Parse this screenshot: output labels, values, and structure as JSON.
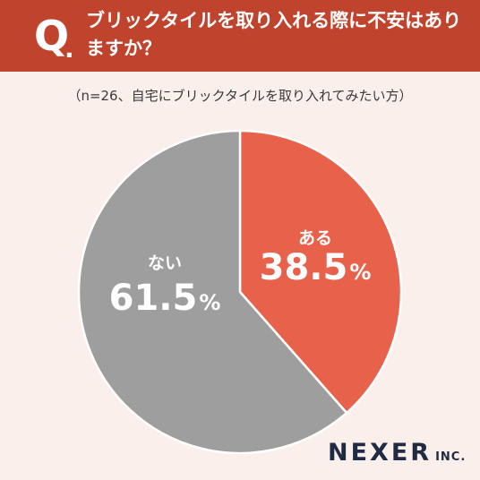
{
  "header": {
    "q_mark": "Q",
    "q_dot": ".",
    "question": "ブリックタイルを取り入れる際に不安はありますか？"
  },
  "subtitle": "（n=26、自宅にブリックタイルを取り入れてみたい方）",
  "chart_data": {
    "type": "pie",
    "title": "ブリックタイルを取り入れる際に不安はありますか？",
    "subtitle": "（n=26、自宅にブリックタイルを取り入れてみたい方）",
    "slices": [
      {
        "label": "ある",
        "value": 38.5,
        "value_text": "38.5",
        "unit": "%",
        "color": "#e8614a"
      },
      {
        "label": "ない",
        "value": 61.5,
        "value_text": "61.5",
        "unit": "%",
        "color": "#9e9e9e"
      }
    ],
    "start": "12 o'clock",
    "direction": "clockwise",
    "separator_color": "#ffffff"
  },
  "logo": {
    "main": "NEXER",
    "sub": "INC."
  },
  "colors": {
    "header": "#c0432d",
    "background": "#fbefec",
    "text_on_slice": "#ffffff",
    "logo": "#1f2a44"
  }
}
